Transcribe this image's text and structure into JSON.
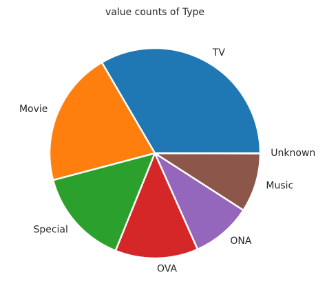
{
  "chart_data": {
    "type": "pie",
    "title": "value counts of Type",
    "labels": [
      "TV",
      "Movie",
      "Special",
      "OVA",
      "ONA",
      "Music",
      "Unknown"
    ],
    "values": [
      3787,
      2348,
      1676,
      1444,
      1047,
      1029,
      4
    ],
    "colors": [
      "#1f77b4",
      "#ff7f0e",
      "#2ca02c",
      "#d62728",
      "#9467bd",
      "#8c564b",
      "#e377c2"
    ]
  }
}
